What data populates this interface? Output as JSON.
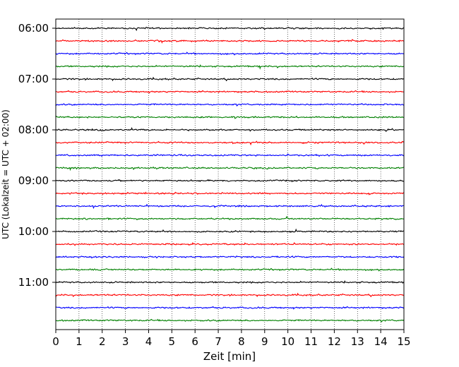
{
  "chart_data": {
    "type": "line",
    "title": "",
    "xlabel": "Zeit  [min]",
    "ylabel": "UTC (Lokalzeit = UTC + 02:00)",
    "xlim": [
      0,
      15
    ],
    "x_ticks": [
      0,
      1,
      2,
      3,
      4,
      5,
      6,
      7,
      8,
      9,
      10,
      11,
      12,
      13,
      14,
      15
    ],
    "y_tick_labels": [
      "06:00",
      "07:00",
      "08:00",
      "09:00",
      "10:00",
      "11:00"
    ],
    "grid": "vertical dotted at each minute",
    "trace_interval_minutes": 15,
    "trace_start_times": [
      "06:00",
      "06:15",
      "06:30",
      "06:45",
      "07:00",
      "07:15",
      "07:30",
      "07:45",
      "08:00",
      "08:15",
      "08:30",
      "08:45",
      "09:00",
      "09:15",
      "09:30",
      "09:45",
      "10:00",
      "10:15",
      "10:30",
      "10:45",
      "11:00",
      "11:15",
      "11:30",
      "11:45"
    ],
    "trace_colors": [
      "#000000",
      "#ff0000",
      "#0000ff",
      "#008000"
    ]
  }
}
